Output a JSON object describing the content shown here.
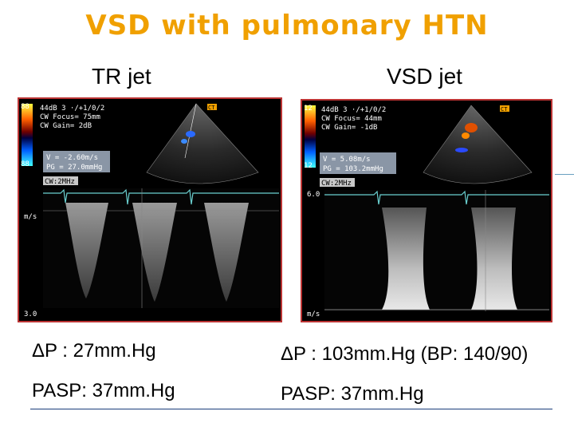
{
  "title": "VSD with pulmonary HTN",
  "left": {
    "heading": "TR jet",
    "overlay": {
      "scale_top": "88",
      "scale_bottom": "88",
      "line1": "44dB 3 ·/+1/0/2",
      "line2": "CW Focus= 75mm",
      "line3": "CW Gain= 2dB",
      "badge": "CT",
      "meas1": "V = -2.60m/s",
      "meas2": "PG = 27.0mmHg",
      "mode": "CW:2MHz",
      "axis_unit": "m/s",
      "axis_bottom": "3.0"
    },
    "delta_label": "ΔP : 27mm.Hg",
    "pasp_label": "PASP: 37mm.Hg"
  },
  "right": {
    "heading": "VSD jet",
    "overlay": {
      "scale_top": "12",
      "scale_bottom": "12",
      "line1": "44dB 3 ·/+1/0/2",
      "line2": "CW Focus= 44mm",
      "line3": "CW Gain= -1dB",
      "badge": "CT",
      "meas1": "V = 5.08m/s",
      "meas2": "PG = 103.2mmHg",
      "mode": "CW:2MHz",
      "axis_top": "6.0",
      "axis_unit": "m/s"
    },
    "delta_label": "ΔP : 103mm.Hg (BP: 140/90)",
    "pasp_label": "PASP: 37mm.Hg"
  }
}
